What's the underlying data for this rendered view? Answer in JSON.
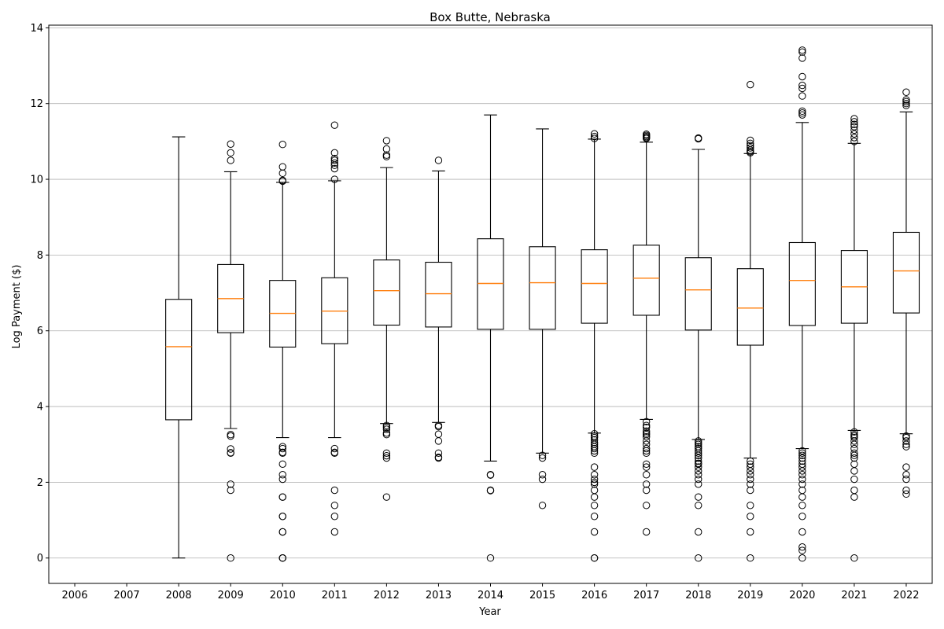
{
  "chart_data": {
    "type": "box",
    "title": "Box Butte, Nebraska",
    "xlabel": "Year",
    "ylabel": "Log Payment ($)",
    "ylim": [
      -0.67,
      14.07
    ],
    "yticks": [
      0,
      2,
      4,
      6,
      8,
      10,
      12,
      14
    ],
    "grid": "y-axis",
    "categories": [
      "2006",
      "2007",
      "2008",
      "2009",
      "2010",
      "2011",
      "2012",
      "2013",
      "2014",
      "2015",
      "2016",
      "2017",
      "2018",
      "2019",
      "2020",
      "2021",
      "2022"
    ],
    "box_color": "#000000",
    "median_color": "#ff7f0e",
    "boxes": [
      {
        "year": "2006",
        "empty": true
      },
      {
        "year": "2007",
        "empty": true
      },
      {
        "year": "2008",
        "whisker_low": 0.0,
        "q1": 3.65,
        "median": 5.58,
        "q3": 6.83,
        "whisker_high": 11.12,
        "outliers": []
      },
      {
        "year": "2009",
        "whisker_low": 3.42,
        "q1": 5.95,
        "median": 6.85,
        "q3": 7.75,
        "whisker_high": 10.2,
        "outliers": [
          10.93,
          10.7,
          10.5,
          3.26,
          3.22,
          2.88,
          2.78,
          2.77,
          1.95,
          1.79,
          0.0
        ]
      },
      {
        "year": "2010",
        "whisker_low": 3.18,
        "q1": 5.57,
        "median": 6.46,
        "q3": 7.33,
        "whisker_high": 9.92,
        "outliers": [
          10.92,
          10.33,
          10.16,
          9.97,
          9.95,
          2.94,
          2.89,
          2.79,
          2.77,
          2.48,
          2.2,
          2.08,
          1.61,
          1.61,
          1.1,
          1.1,
          0.69,
          0.69,
          0.0,
          0.0,
          0.0
        ]
      },
      {
        "year": "2011",
        "whisker_low": 3.18,
        "q1": 5.66,
        "median": 6.52,
        "q3": 7.4,
        "whisker_high": 9.96,
        "outliers": [
          11.43,
          10.7,
          10.55,
          10.5,
          10.43,
          10.37,
          10.28,
          10.0,
          2.89,
          2.79,
          2.77,
          1.79,
          1.39,
          1.1,
          0.69
        ]
      },
      {
        "year": "2012",
        "whisker_low": 3.55,
        "q1": 6.15,
        "median": 7.06,
        "q3": 7.87,
        "whisker_high": 10.31,
        "outliers": [
          11.02,
          10.8,
          10.64,
          10.6,
          3.5,
          3.45,
          3.4,
          3.3,
          3.26,
          2.77,
          2.7,
          2.64,
          1.61
        ]
      },
      {
        "year": "2013",
        "whisker_low": 3.58,
        "q1": 6.1,
        "median": 6.98,
        "q3": 7.81,
        "whisker_high": 10.22,
        "outliers": [
          10.5,
          3.5,
          3.47,
          3.27,
          3.09,
          2.77,
          2.66,
          2.64
        ]
      },
      {
        "year": "2014",
        "whisker_low": 2.56,
        "q1": 6.04,
        "median": 7.25,
        "q3": 8.43,
        "whisker_high": 11.7,
        "outliers": [
          2.2,
          2.19,
          1.79,
          1.78,
          0.0
        ]
      },
      {
        "year": "2015",
        "whisker_low": 2.77,
        "q1": 6.04,
        "median": 7.27,
        "q3": 8.22,
        "whisker_high": 11.33,
        "outliers": [
          2.71,
          2.64,
          2.2,
          2.08,
          1.39
        ]
      },
      {
        "year": "2016",
        "whisker_low": 3.3,
        "q1": 6.2,
        "median": 7.25,
        "q3": 8.14,
        "whisker_high": 11.06,
        "outliers": [
          11.2,
          11.13,
          11.08,
          3.28,
          3.22,
          3.18,
          3.12,
          3.05,
          3.0,
          2.94,
          2.89,
          2.83,
          2.77,
          2.4,
          2.2,
          2.08,
          2.0,
          1.95,
          1.79,
          1.61,
          1.39,
          1.1,
          0.69,
          0.0,
          0.0
        ]
      },
      {
        "year": "2017",
        "whisker_low": 3.66,
        "q1": 6.41,
        "median": 7.39,
        "q3": 8.26,
        "whisker_high": 10.98,
        "outliers": [
          11.19,
          11.16,
          11.13,
          11.1,
          11.08,
          3.6,
          3.5,
          3.45,
          3.35,
          3.3,
          3.26,
          3.2,
          3.09,
          3.0,
          2.89,
          2.83,
          2.77,
          2.48,
          2.4,
          2.2,
          1.95,
          1.79,
          1.39,
          0.69
        ]
      },
      {
        "year": "2018",
        "whisker_low": 3.13,
        "q1": 6.02,
        "median": 7.08,
        "q3": 7.93,
        "whisker_high": 10.79,
        "outliers": [
          11.09,
          11.07,
          3.09,
          3.04,
          3.0,
          2.94,
          2.89,
          2.83,
          2.77,
          2.71,
          2.64,
          2.56,
          2.5,
          2.48,
          2.4,
          2.3,
          2.2,
          2.08,
          1.95,
          1.61,
          1.39,
          0.69,
          0.0
        ]
      },
      {
        "year": "2019",
        "whisker_low": 2.64,
        "q1": 5.62,
        "median": 6.6,
        "q3": 7.64,
        "whisker_high": 10.68,
        "outliers": [
          12.5,
          11.03,
          10.95,
          10.89,
          10.83,
          10.77,
          10.73,
          10.7,
          2.56,
          2.48,
          2.4,
          2.3,
          2.2,
          2.08,
          1.95,
          1.79,
          1.39,
          1.1,
          0.69,
          0.0
        ]
      },
      {
        "year": "2020",
        "whisker_low": 2.89,
        "q1": 6.14,
        "median": 7.33,
        "q3": 8.33,
        "whisker_high": 11.5,
        "outliers": [
          13.41,
          13.36,
          13.2,
          12.71,
          12.48,
          12.4,
          12.2,
          11.8,
          11.75,
          11.7,
          2.83,
          2.77,
          2.71,
          2.64,
          2.56,
          2.48,
          2.4,
          2.3,
          2.2,
          2.08,
          1.95,
          1.79,
          1.61,
          1.39,
          1.1,
          0.69,
          0.29,
          0.2,
          0.0
        ]
      },
      {
        "year": "2021",
        "whisker_low": 3.37,
        "q1": 6.2,
        "median": 7.16,
        "q3": 8.12,
        "whisker_high": 10.95,
        "outliers": [
          11.6,
          11.52,
          11.45,
          11.39,
          11.3,
          11.2,
          11.1,
          11.0,
          3.33,
          3.26,
          3.22,
          3.18,
          3.09,
          3.0,
          2.89,
          2.77,
          2.71,
          2.64,
          2.48,
          2.3,
          2.08,
          1.79,
          1.61,
          0.0
        ]
      },
      {
        "year": "2022",
        "whisker_low": 3.28,
        "q1": 6.47,
        "median": 7.58,
        "q3": 8.6,
        "whisker_high": 11.78,
        "outliers": [
          12.3,
          12.1,
          12.05,
          12.0,
          11.95,
          3.22,
          3.18,
          3.09,
          3.0,
          2.94,
          2.4,
          2.2,
          2.08,
          1.79,
          1.69
        ]
      }
    ]
  }
}
